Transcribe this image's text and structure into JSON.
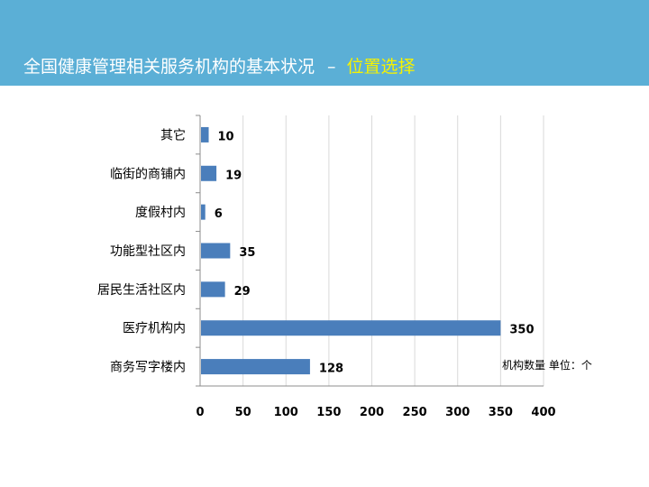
{
  "header": {
    "title_main": "全国健康管理相关服务机构的基本状况",
    "separator": "–",
    "title_highlight": "位置选择"
  },
  "colors": {
    "header_bg": "#5bafd6",
    "title_text": "#ffffff",
    "title_highlight": "#f6f200",
    "bar": "#4a7ebb",
    "grid": "#d9d9d9"
  },
  "chart_data": {
    "type": "bar",
    "orientation": "horizontal",
    "categories": [
      "其它",
      "临街的商铺内",
      "度假村内",
      "功能型社区内",
      "居民生活社区内",
      "医疗机构内",
      "商务写字楼内"
    ],
    "values": [
      10,
      19,
      6,
      35,
      29,
      350,
      128
    ],
    "data_labels": [
      "10",
      "19",
      "6",
      "35",
      "29",
      "350",
      "128"
    ],
    "xlim": [
      0,
      400
    ],
    "xticks": [
      0,
      50,
      100,
      150,
      200,
      250,
      300,
      350,
      400
    ],
    "grid": true,
    "legend": "none",
    "annotation": "机构数量 单位：个"
  }
}
